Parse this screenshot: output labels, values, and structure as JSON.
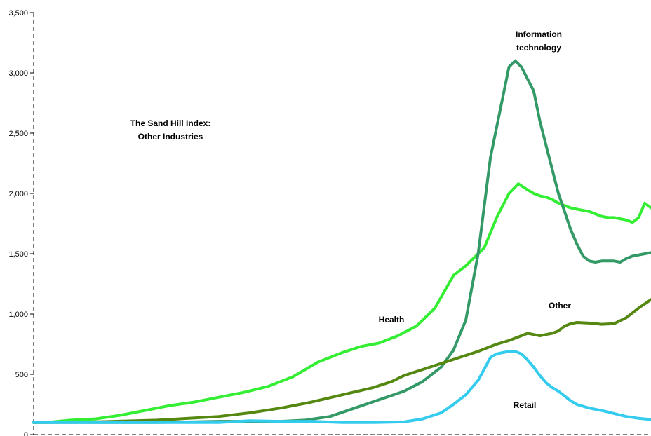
{
  "chart_data": {
    "type": "line",
    "title": "The Sand Hill Index:",
    "subtitle": "Other Industries",
    "xlabel": "",
    "ylabel": "",
    "ylim": [
      0,
      3500
    ],
    "yticks": [
      0,
      500,
      1000,
      1500,
      2000,
      2500,
      3000,
      3500
    ],
    "ytick_labels": [
      "0",
      "500",
      "1,000",
      "1,500",
      "2,000",
      "2,500",
      "3,000",
      "3,500"
    ],
    "xlim": [
      0,
      100
    ],
    "grid": false,
    "annotations": [
      {
        "text": "Information",
        "series": "Information technology"
      },
      {
        "text": "technology",
        "series": "Information technology"
      },
      {
        "text": "Health",
        "series": "Health"
      },
      {
        "text": "Other",
        "series": "Other"
      },
      {
        "text": "Retail",
        "series": "Retail"
      }
    ],
    "series": [
      {
        "name": "Health",
        "color": "#33ee33",
        "x": [
          0,
          3,
          6,
          10,
          14,
          18,
          22,
          26,
          30,
          34,
          38,
          42,
          46,
          50,
          53,
          56,
          59,
          62,
          65,
          68,
          70,
          71,
          73,
          75,
          77,
          78.5,
          80,
          81,
          82,
          83,
          84,
          85,
          86,
          87,
          88,
          89,
          90,
          91,
          92,
          93,
          94,
          95,
          96,
          97,
          98,
          99,
          100
        ],
        "y": [
          100,
          105,
          120,
          130,
          160,
          200,
          240,
          270,
          310,
          350,
          400,
          480,
          600,
          680,
          730,
          760,
          820,
          900,
          1050,
          1320,
          1400,
          1450,
          1550,
          1800,
          2000,
          2080,
          2030,
          2000,
          1980,
          1970,
          1950,
          1920,
          1900,
          1880,
          1870,
          1860,
          1850,
          1830,
          1810,
          1800,
          1800,
          1790,
          1780,
          1760,
          1800,
          1920,
          1880
        ]
      },
      {
        "name": "Information technology",
        "color": "#339966",
        "x": [
          0,
          5,
          10,
          20,
          30,
          40,
          44,
          48,
          52,
          56,
          60,
          63,
          66,
          68,
          70,
          72,
          74,
          76,
          77,
          78,
          79,
          80,
          81,
          82,
          83,
          84,
          85,
          86,
          87,
          88,
          89,
          90,
          91,
          92,
          93,
          94,
          95,
          96,
          97,
          98,
          99,
          100
        ],
        "y": [
          100,
          100,
          100,
          100,
          110,
          110,
          120,
          150,
          220,
          290,
          360,
          440,
          560,
          700,
          950,
          1500,
          2300,
          2800,
          3050,
          3100,
          3050,
          2950,
          2850,
          2600,
          2400,
          2200,
          2000,
          1850,
          1700,
          1580,
          1480,
          1440,
          1430,
          1440,
          1440,
          1440,
          1430,
          1460,
          1480,
          1490,
          1500,
          1510
        ]
      },
      {
        "name": "Other",
        "color": "#558811",
        "x": [
          0,
          10,
          20,
          30,
          35,
          40,
          45,
          50,
          55,
          58,
          60,
          63,
          66,
          69,
          72,
          75,
          77,
          78,
          79,
          80,
          81,
          82,
          83,
          84,
          85,
          86,
          87,
          88,
          90,
          92,
          94,
          96,
          98,
          100
        ],
        "y": [
          100,
          105,
          120,
          150,
          180,
          220,
          270,
          330,
          390,
          440,
          490,
          540,
          590,
          640,
          690,
          750,
          780,
          800,
          820,
          840,
          830,
          820,
          830,
          840,
          860,
          900,
          920,
          930,
          925,
          915,
          920,
          970,
          1050,
          1120
        ]
      },
      {
        "name": "Retail",
        "color": "#33ccee",
        "x": [
          0,
          10,
          20,
          30,
          35,
          40,
          45,
          50,
          55,
          60,
          63,
          66,
          68,
          70,
          72,
          74,
          75,
          76,
          77,
          78,
          79,
          80,
          81,
          82,
          83,
          84,
          85,
          86,
          87,
          88,
          90,
          92,
          94,
          96,
          98,
          100
        ],
        "y": [
          100,
          100,
          100,
          100,
          115,
          110,
          110,
          100,
          100,
          105,
          130,
          180,
          250,
          330,
          450,
          640,
          670,
          680,
          690,
          690,
          670,
          620,
          560,
          490,
          430,
          390,
          360,
          320,
          280,
          250,
          220,
          200,
          175,
          150,
          135,
          125
        ]
      }
    ]
  }
}
